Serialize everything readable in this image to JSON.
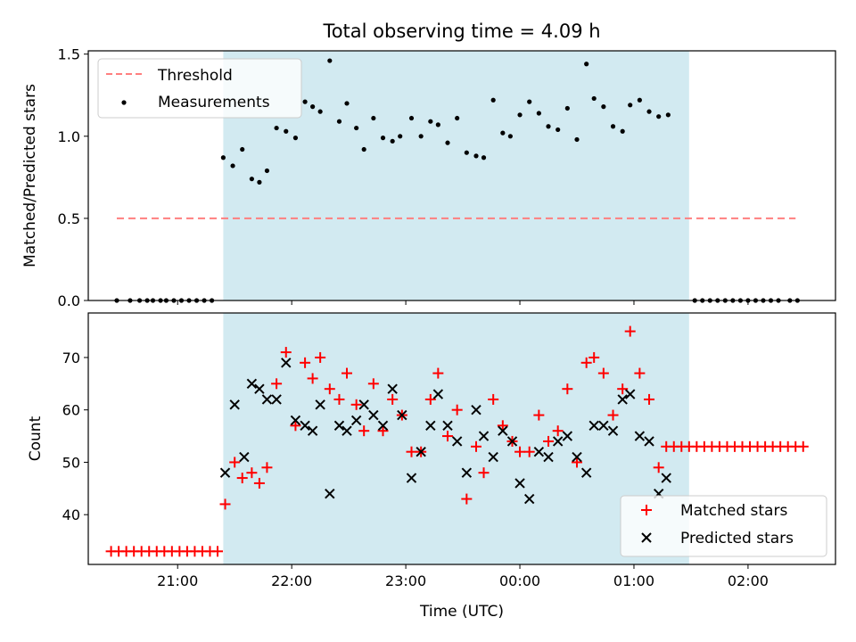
{
  "chart_data": {
    "title": "Total observing time = 4.09 h",
    "xlabel": "Time (UTC)",
    "shading": {
      "start": "21:24",
      "end": "01:29",
      "color": "#add8e6"
    },
    "x_ticks": [
      "21:00",
      "22:00",
      "23:00",
      "00:00",
      "01:00",
      "02:00"
    ],
    "x_tick_times": [
      "21:00",
      "22:00",
      "23:00",
      "00:00",
      "01:00",
      "02:00"
    ],
    "x_range": [
      "20:13",
      "02:46"
    ],
    "panels": [
      {
        "type": "scatter",
        "ylabel": "Matched/Predicted stars",
        "ylim": [
          0,
          1.52
        ],
        "yticks": [
          0.0,
          0.5,
          1.0,
          1.5
        ],
        "ytick_labels": [
          "0.0",
          "0.5",
          "1.0",
          "1.5"
        ],
        "legend": {
          "position": "top-left",
          "entries": [
            {
              "label": "Threshold",
              "marker": "dashed-line",
              "color": "#ff7f7f"
            },
            {
              "label": "Measurements",
              "marker": "dot",
              "color": "#000000"
            }
          ]
        },
        "threshold": {
          "name": "Threshold",
          "value": 0.5,
          "x_start": "20:28",
          "x_end": "02:25",
          "color": "#ff7f7f"
        },
        "series": [
          {
            "name": "Measurements",
            "marker": "dot",
            "color": "#000000",
            "points": [
              [
                "20:28",
                0
              ],
              [
                "20:35",
                0
              ],
              [
                "20:40",
                0
              ],
              [
                "20:44",
                0
              ],
              [
                "20:47",
                0
              ],
              [
                "20:51",
                0
              ],
              [
                "20:54",
                0
              ],
              [
                "20:58",
                0
              ],
              [
                "21:02",
                0
              ],
              [
                "21:06",
                0
              ],
              [
                "21:10",
                0
              ],
              [
                "21:14",
                0
              ],
              [
                "21:18",
                0
              ],
              [
                "21:24",
                0.87
              ],
              [
                "21:29",
                0.82
              ],
              [
                "21:34",
                0.92
              ],
              [
                "21:39",
                0.74
              ],
              [
                "21:43",
                0.72
              ],
              [
                "21:47",
                0.79
              ],
              [
                "21:52",
                1.05
              ],
              [
                "21:57",
                1.03
              ],
              [
                "22:02",
                0.99
              ],
              [
                "22:07",
                1.21
              ],
              [
                "22:11",
                1.18
              ],
              [
                "22:15",
                1.15
              ],
              [
                "22:20",
                1.46
              ],
              [
                "22:25",
                1.09
              ],
              [
                "22:29",
                1.2
              ],
              [
                "22:34",
                1.05
              ],
              [
                "22:38",
                0.92
              ],
              [
                "22:43",
                1.11
              ],
              [
                "22:48",
                0.99
              ],
              [
                "22:53",
                0.97
              ],
              [
                "22:57",
                1.0
              ],
              [
                "23:03",
                1.11
              ],
              [
                "23:08",
                1.0
              ],
              [
                "23:13",
                1.09
              ],
              [
                "23:17",
                1.07
              ],
              [
                "23:22",
                0.96
              ],
              [
                "23:27",
                1.11
              ],
              [
                "23:32",
                0.9
              ],
              [
                "23:37",
                0.88
              ],
              [
                "23:41",
                0.87
              ],
              [
                "23:46",
                1.22
              ],
              [
                "23:51",
                1.02
              ],
              [
                "23:55",
                1.0
              ],
              [
                "00:00",
                1.13
              ],
              [
                "00:05",
                1.21
              ],
              [
                "00:10",
                1.14
              ],
              [
                "00:15",
                1.06
              ],
              [
                "00:20",
                1.04
              ],
              [
                "00:25",
                1.17
              ],
              [
                "00:30",
                0.98
              ],
              [
                "00:35",
                1.44
              ],
              [
                "00:39",
                1.23
              ],
              [
                "00:44",
                1.18
              ],
              [
                "00:49",
                1.06
              ],
              [
                "00:54",
                1.03
              ],
              [
                "00:58",
                1.19
              ],
              [
                "01:03",
                1.22
              ],
              [
                "01:08",
                1.15
              ],
              [
                "01:13",
                1.12
              ],
              [
                "01:18",
                1.13
              ],
              [
                "01:32",
                0
              ],
              [
                "01:36",
                0
              ],
              [
                "01:40",
                0
              ],
              [
                "01:44",
                0
              ],
              [
                "01:48",
                0
              ],
              [
                "01:52",
                0
              ],
              [
                "01:56",
                0
              ],
              [
                "02:00",
                0
              ],
              [
                "02:04",
                0
              ],
              [
                "02:08",
                0
              ],
              [
                "02:12",
                0
              ],
              [
                "02:16",
                0
              ],
              [
                "02:22",
                0
              ],
              [
                "02:26",
                0
              ]
            ]
          }
        ]
      },
      {
        "type": "scatter",
        "ylabel": "Count",
        "ylim": [
          30.5,
          78.5
        ],
        "yticks": [
          40,
          50,
          60,
          70
        ],
        "ytick_labels": [
          "40",
          "50",
          "60",
          "70"
        ],
        "legend": {
          "position": "bottom-right",
          "entries": [
            {
              "label": "Matched stars",
              "marker": "plus",
              "color": "#ff0000"
            },
            {
              "label": "Predicted stars",
              "marker": "x",
              "color": "#000000"
            }
          ]
        },
        "series": [
          {
            "name": "Matched stars",
            "marker": "plus",
            "color": "#ff0000",
            "points": [
              [
                "20:25",
                33
              ],
              [
                "20:29",
                33
              ],
              [
                "20:33",
                33
              ],
              [
                "20:37",
                33
              ],
              [
                "20:41",
                33
              ],
              [
                "20:45",
                33
              ],
              [
                "20:49",
                33
              ],
              [
                "20:53",
                33
              ],
              [
                "20:57",
                33
              ],
              [
                "21:01",
                33
              ],
              [
                "21:05",
                33
              ],
              [
                "21:09",
                33
              ],
              [
                "21:13",
                33
              ],
              [
                "21:17",
                33
              ],
              [
                "21:21",
                33
              ],
              [
                "21:25",
                42
              ],
              [
                "21:30",
                50
              ],
              [
                "21:34",
                47
              ],
              [
                "21:39",
                48
              ],
              [
                "21:43",
                46
              ],
              [
                "21:47",
                49
              ],
              [
                "21:52",
                65
              ],
              [
                "21:57",
                71
              ],
              [
                "22:02",
                57
              ],
              [
                "22:07",
                69
              ],
              [
                "22:11",
                66
              ],
              [
                "22:15",
                70
              ],
              [
                "22:20",
                64
              ],
              [
                "22:25",
                62
              ],
              [
                "22:29",
                67
              ],
              [
                "22:34",
                61
              ],
              [
                "22:38",
                56
              ],
              [
                "22:43",
                65
              ],
              [
                "22:48",
                56
              ],
              [
                "22:53",
                62
              ],
              [
                "22:58",
                59
              ],
              [
                "23:03",
                52
              ],
              [
                "23:08",
                52
              ],
              [
                "23:13",
                62
              ],
              [
                "23:17",
                67
              ],
              [
                "23:22",
                55
              ],
              [
                "23:27",
                60
              ],
              [
                "23:32",
                43
              ],
              [
                "23:37",
                53
              ],
              [
                "23:41",
                48
              ],
              [
                "23:46",
                62
              ],
              [
                "23:51",
                57
              ],
              [
                "23:56",
                54
              ],
              [
                "00:00",
                52
              ],
              [
                "00:05",
                52
              ],
              [
                "00:10",
                59
              ],
              [
                "00:15",
                54
              ],
              [
                "00:20",
                56
              ],
              [
                "00:25",
                64
              ],
              [
                "00:30",
                50
              ],
              [
                "00:35",
                69
              ],
              [
                "00:39",
                70
              ],
              [
                "00:44",
                67
              ],
              [
                "00:49",
                59
              ],
              [
                "00:54",
                64
              ],
              [
                "00:58",
                75
              ],
              [
                "01:03",
                67
              ],
              [
                "01:08",
                62
              ],
              [
                "01:13",
                49
              ],
              [
                "01:17",
                53
              ],
              [
                "01:21",
                53
              ],
              [
                "01:25",
                53
              ],
              [
                "01:29",
                53
              ],
              [
                "01:33",
                53
              ],
              [
                "01:37",
                53
              ],
              [
                "01:41",
                53
              ],
              [
                "01:45",
                53
              ],
              [
                "01:49",
                53
              ],
              [
                "01:53",
                53
              ],
              [
                "01:57",
                53
              ],
              [
                "02:01",
                53
              ],
              [
                "02:05",
                53
              ],
              [
                "02:09",
                53
              ],
              [
                "02:13",
                53
              ],
              [
                "02:17",
                53
              ],
              [
                "02:21",
                53
              ],
              [
                "02:25",
                53
              ],
              [
                "02:29",
                53
              ]
            ]
          },
          {
            "name": "Predicted stars",
            "marker": "x",
            "color": "#000000",
            "points": [
              [
                "21:25",
                48
              ],
              [
                "21:30",
                61
              ],
              [
                "21:35",
                51
              ],
              [
                "21:39",
                65
              ],
              [
                "21:43",
                64
              ],
              [
                "21:47",
                62
              ],
              [
                "21:52",
                62
              ],
              [
                "21:57",
                69
              ],
              [
                "22:02",
                58
              ],
              [
                "22:07",
                57
              ],
              [
                "22:11",
                56
              ],
              [
                "22:15",
                61
              ],
              [
                "22:20",
                44
              ],
              [
                "22:25",
                57
              ],
              [
                "22:29",
                56
              ],
              [
                "22:34",
                58
              ],
              [
                "22:38",
                61
              ],
              [
                "22:43",
                59
              ],
              [
                "22:48",
                57
              ],
              [
                "22:53",
                64
              ],
              [
                "22:58",
                59
              ],
              [
                "23:03",
                47
              ],
              [
                "23:08",
                52
              ],
              [
                "23:13",
                57
              ],
              [
                "23:17",
                63
              ],
              [
                "23:22",
                57
              ],
              [
                "23:27",
                54
              ],
              [
                "23:32",
                48
              ],
              [
                "23:37",
                60
              ],
              [
                "23:41",
                55
              ],
              [
                "23:46",
                51
              ],
              [
                "23:51",
                56
              ],
              [
                "23:56",
                54
              ],
              [
                "00:00",
                46
              ],
              [
                "00:05",
                43
              ],
              [
                "00:10",
                52
              ],
              [
                "00:15",
                51
              ],
              [
                "00:20",
                54
              ],
              [
                "00:25",
                55
              ],
              [
                "00:30",
                51
              ],
              [
                "00:35",
                48
              ],
              [
                "00:39",
                57
              ],
              [
                "00:44",
                57
              ],
              [
                "00:49",
                56
              ],
              [
                "00:54",
                62
              ],
              [
                "00:58",
                63
              ],
              [
                "01:03",
                55
              ],
              [
                "01:08",
                54
              ],
              [
                "01:13",
                44
              ],
              [
                "01:17",
                47
              ]
            ]
          }
        ]
      }
    ]
  }
}
